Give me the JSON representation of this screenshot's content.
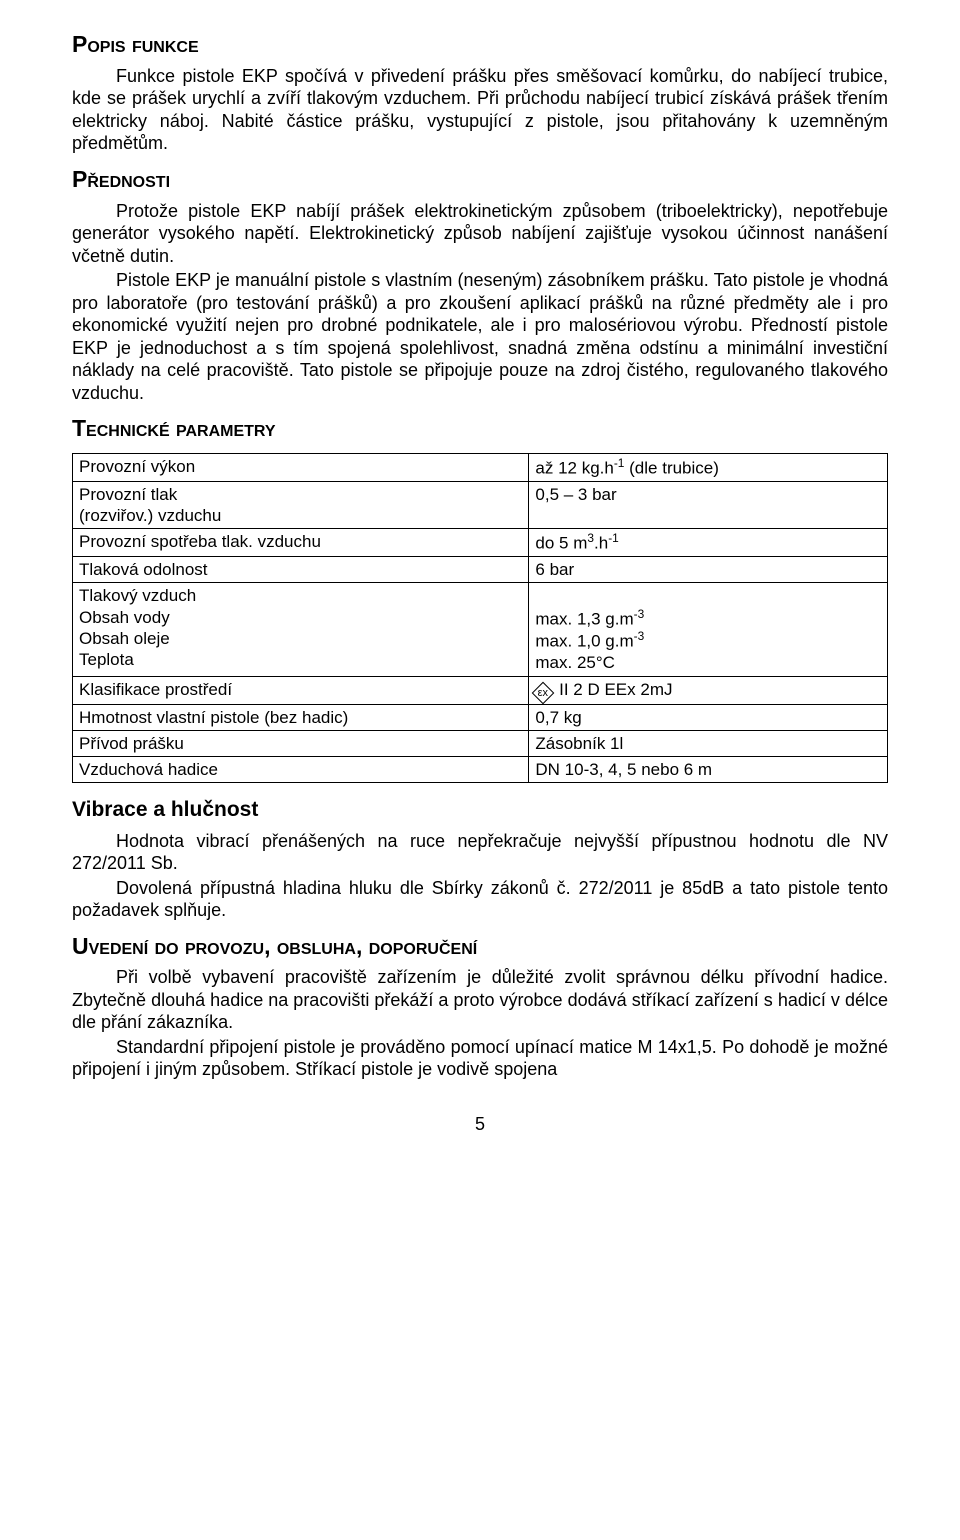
{
  "sections": {
    "popis": {
      "heading": "Popis funkce",
      "p1": "Funkce pistole EKP spočívá v přivedení prášku přes směšovací komůrku, do nabíjecí trubice, kde se prášek urychlí a zvíří tlakovým vzduchem. Při průchodu nabíjecí trubicí získává prášek třením elektricky náboj. Nabité částice prášku, vystupující z pistole, jsou přitahovány k uzemněným předmětům."
    },
    "prednosti": {
      "heading": "Přednosti",
      "p1": "Protože pistole EKP nabíjí prášek elektrokinetickým způsobem (triboelektricky), nepotřebuje generátor vysokého napětí. Elektrokinetický způsob nabíjení zajišťuje vysokou účinnost nanášení včetně dutin.",
      "p2": "Pistole EKP je manuální pistole s vlastním (neseným) zásobníkem prášku. Tato pistole je vhodná pro laboratoře (pro testování prášků) a pro zkoušení aplikací prášků na různé předměty ale i pro ekonomické využití nejen pro drobné podnikatele, ale i pro malosériovou výrobu. Předností pistole EKP je jednoduchost a s tím spojená spolehlivost, snadná změna odstínu a minimální investiční náklady na celé pracoviště. Tato pistole se připojuje pouze na zdroj čistého, regulovaného tlakového vzduchu."
    },
    "tech": {
      "heading": "Technické parametry",
      "rows": [
        {
          "label": "Provozní výkon",
          "value_html": "až 12 kg.h<sup>-1</sup> (dle trubice)"
        },
        {
          "label_html": "Provozní tlak<br>(rozviřov.) vzduchu",
          "value": "0,5 – 3 bar"
        },
        {
          "label": "Provozní spotřeba tlak. vzduchu",
          "value_html": "do 5 m<sup>3</sup>.h<sup>-1</sup>"
        },
        {
          "label": "Tlaková odolnost",
          "value": "6 bar"
        },
        {
          "label_html": "Tlakový vzduch<br>Obsah vody<br>Obsah oleje<br>Teplota",
          "value_html": "<br>max. 1,3 g.m<sup>-3</sup><br>max. 1,0 g.m<sup>-3</sup><br>max. 25°C"
        },
        {
          "label": "Klasifikace prostředí",
          "value_html": "<span class=\"ex-mark\"><span>εx</span></span> II 2 D EEx 2mJ"
        },
        {
          "label": "Hmotnost vlastní pistole (bez hadic)",
          "value": "0,7 kg"
        },
        {
          "label": "Přívod prášku",
          "value": "Zásobník 1l"
        },
        {
          "label": "Vzduchová hadice",
          "value": "DN 10-3, 4, 5 nebo 6 m"
        }
      ]
    },
    "vibrace": {
      "heading": "Vibrace a hlučnost",
      "p1": "Hodnota vibrací přenášených na ruce nepřekračuje nejvyšší přípustnou  hodnotu dle NV 272/2011 Sb.",
      "p2": "Dovolená přípustná hladina hluku dle Sbírky zákonů č. 272/2011 je 85dB a tato pistole tento požadavek splňuje."
    },
    "uvedeni": {
      "heading": "Uvedení do provozu, obsluha, doporučení",
      "p1": "Při volbě vybavení pracoviště zařízením je důležité zvolit správnou délku přívodní hadice. Zbytečně dlouhá hadice na pracovišti překáží a proto výrobce dodává stříkací zařízení s hadicí v délce dle přání zákazníka.",
      "p2": "Standardní připojení pistole je prováděno pomocí upínací matice M 14x1,5. Po dohodě je možné připojení i jiným způsobem. Stříkací pistole je vodivě spojena"
    }
  },
  "page_number": "5"
}
